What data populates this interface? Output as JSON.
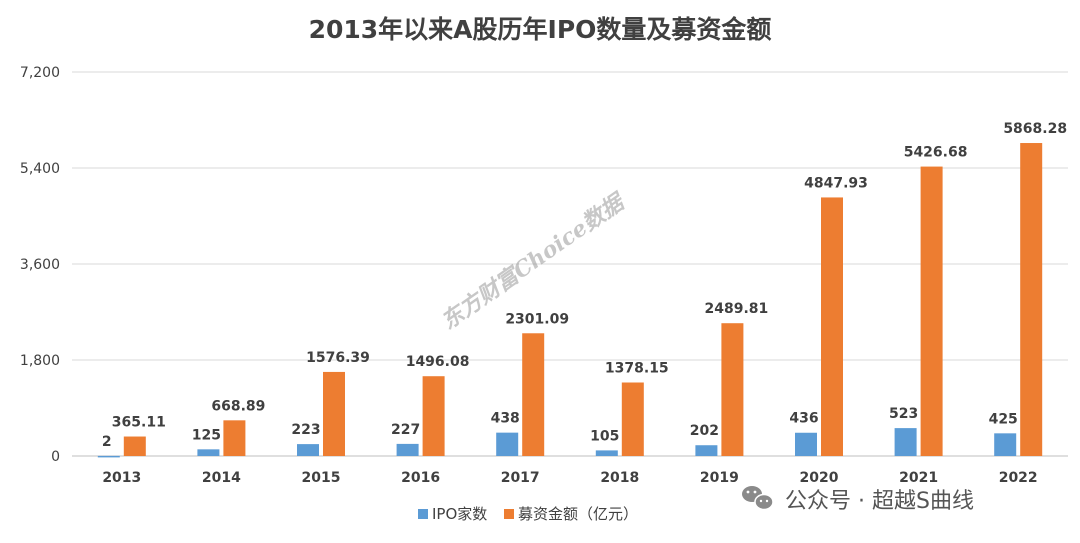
{
  "chart_data": {
    "type": "bar",
    "title": "2013年以来A股历年IPO数量及募资金额",
    "categories": [
      "2013",
      "2014",
      "2015",
      "2016",
      "2017",
      "2018",
      "2019",
      "2020",
      "2021",
      "2022"
    ],
    "series": [
      {
        "name": "IPO家数",
        "color": "#5b9bd5",
        "values": [
          2,
          125,
          223,
          227,
          438,
          105,
          202,
          436,
          523,
          425
        ],
        "labels": [
          "2",
          "125",
          "223",
          "227",
          "438",
          "105",
          "202",
          "436",
          "523",
          "425"
        ]
      },
      {
        "name": "募资金额（亿元）",
        "color": "#ed7d31",
        "values": [
          365.11,
          668.89,
          1576.39,
          1496.08,
          2301.09,
          1378.15,
          2489.81,
          4847.93,
          5426.68,
          5868.28
        ],
        "labels": [
          "365.11",
          "668.89",
          "1576.39",
          "1496.08",
          "2301.09",
          "1378.15",
          "2489.81",
          "4847.93",
          "5426.68",
          "5868.28"
        ]
      }
    ],
    "ylim": [
      0,
      7200
    ],
    "yticks": [
      "0",
      "1,800",
      "3,600",
      "5,400",
      "7,200"
    ],
    "ytick_values": [
      0,
      1800,
      3600,
      5400,
      7200
    ],
    "grid": true,
    "legend": "bottom"
  },
  "watermark": "东方财富Choice数据",
  "overlay": {
    "text": "公众号 · 超越S曲线",
    "icon": "wechat-icon"
  }
}
